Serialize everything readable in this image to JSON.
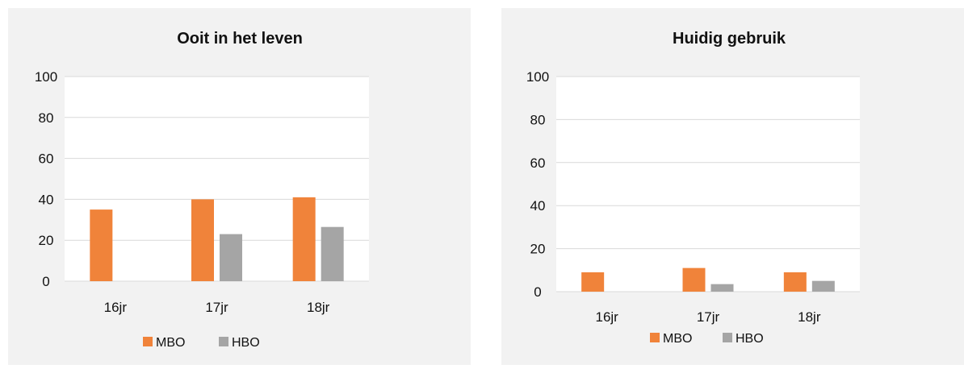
{
  "charts": [
    {
      "type": "bar",
      "title": "Ooit in het leven",
      "categories": [
        "16jr",
        "17jr",
        "18jr"
      ],
      "series": [
        {
          "name": "MBO",
          "values": [
            35,
            40,
            41
          ]
        },
        {
          "name": "HBO",
          "values": [
            null,
            23,
            26.5
          ]
        }
      ],
      "ylim": [
        0,
        100
      ],
      "yticks": [
        0,
        20,
        40,
        60,
        80,
        100
      ],
      "grid": true,
      "legend_placement": "bottom"
    },
    {
      "type": "bar",
      "title": "Huidig gebruik",
      "categories": [
        "16jr",
        "17jr",
        "18jr"
      ],
      "series": [
        {
          "name": "MBO",
          "values": [
            9,
            11,
            9
          ]
        },
        {
          "name": "HBO",
          "values": [
            null,
            3.5,
            5
          ]
        }
      ],
      "ylim": [
        0,
        100
      ],
      "yticks": [
        0,
        20,
        40,
        60,
        80,
        100
      ],
      "grid": true,
      "legend_placement": "bottom"
    }
  ],
  "colors": {
    "panel_bg": "#f2f2f2",
    "plot_bg": "#ffffff",
    "grid": "#d9d9d9",
    "text": "#111111",
    "series": [
      "#f0833a",
      "#a5a5a5"
    ]
  }
}
